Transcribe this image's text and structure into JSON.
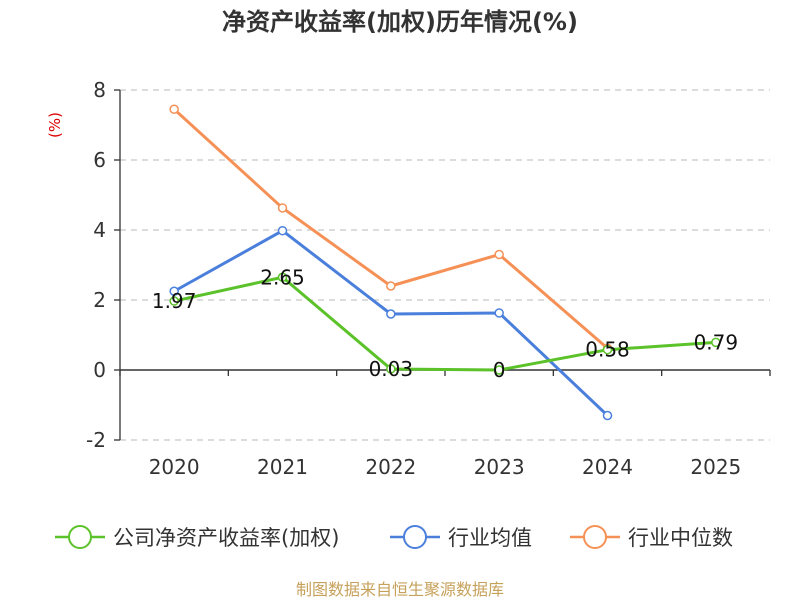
{
  "chart_data": {
    "type": "line",
    "title": "净资产收益率(加权)历年情况(%)",
    "ylabel": "(%)",
    "xlabel": "",
    "categories": [
      "2020",
      "2021",
      "2022",
      "2023",
      "2024",
      "2025"
    ],
    "ylim": [
      -2,
      8
    ],
    "yticks": [
      -2,
      0,
      2,
      4,
      6,
      8
    ],
    "grid": true,
    "legend_position": "bottom",
    "series": [
      {
        "name": "公司净资产收益率(加权)",
        "color": "#5bc22a",
        "values": [
          1.97,
          2.65,
          0.03,
          0,
          0.58,
          0.79
        ],
        "labels": [
          "1.97",
          "2.65",
          "0.03",
          "0",
          "0.58",
          "0.79"
        ]
      },
      {
        "name": "行业均值",
        "color": "#4a7fdc",
        "values": [
          2.25,
          3.98,
          1.6,
          1.63,
          -1.3,
          null
        ]
      },
      {
        "name": "行业中位数",
        "color": "#f59156",
        "values": [
          7.45,
          4.63,
          2.4,
          3.3,
          0.62,
          null
        ]
      }
    ],
    "source": "制图数据来自恒生聚源数据库"
  }
}
